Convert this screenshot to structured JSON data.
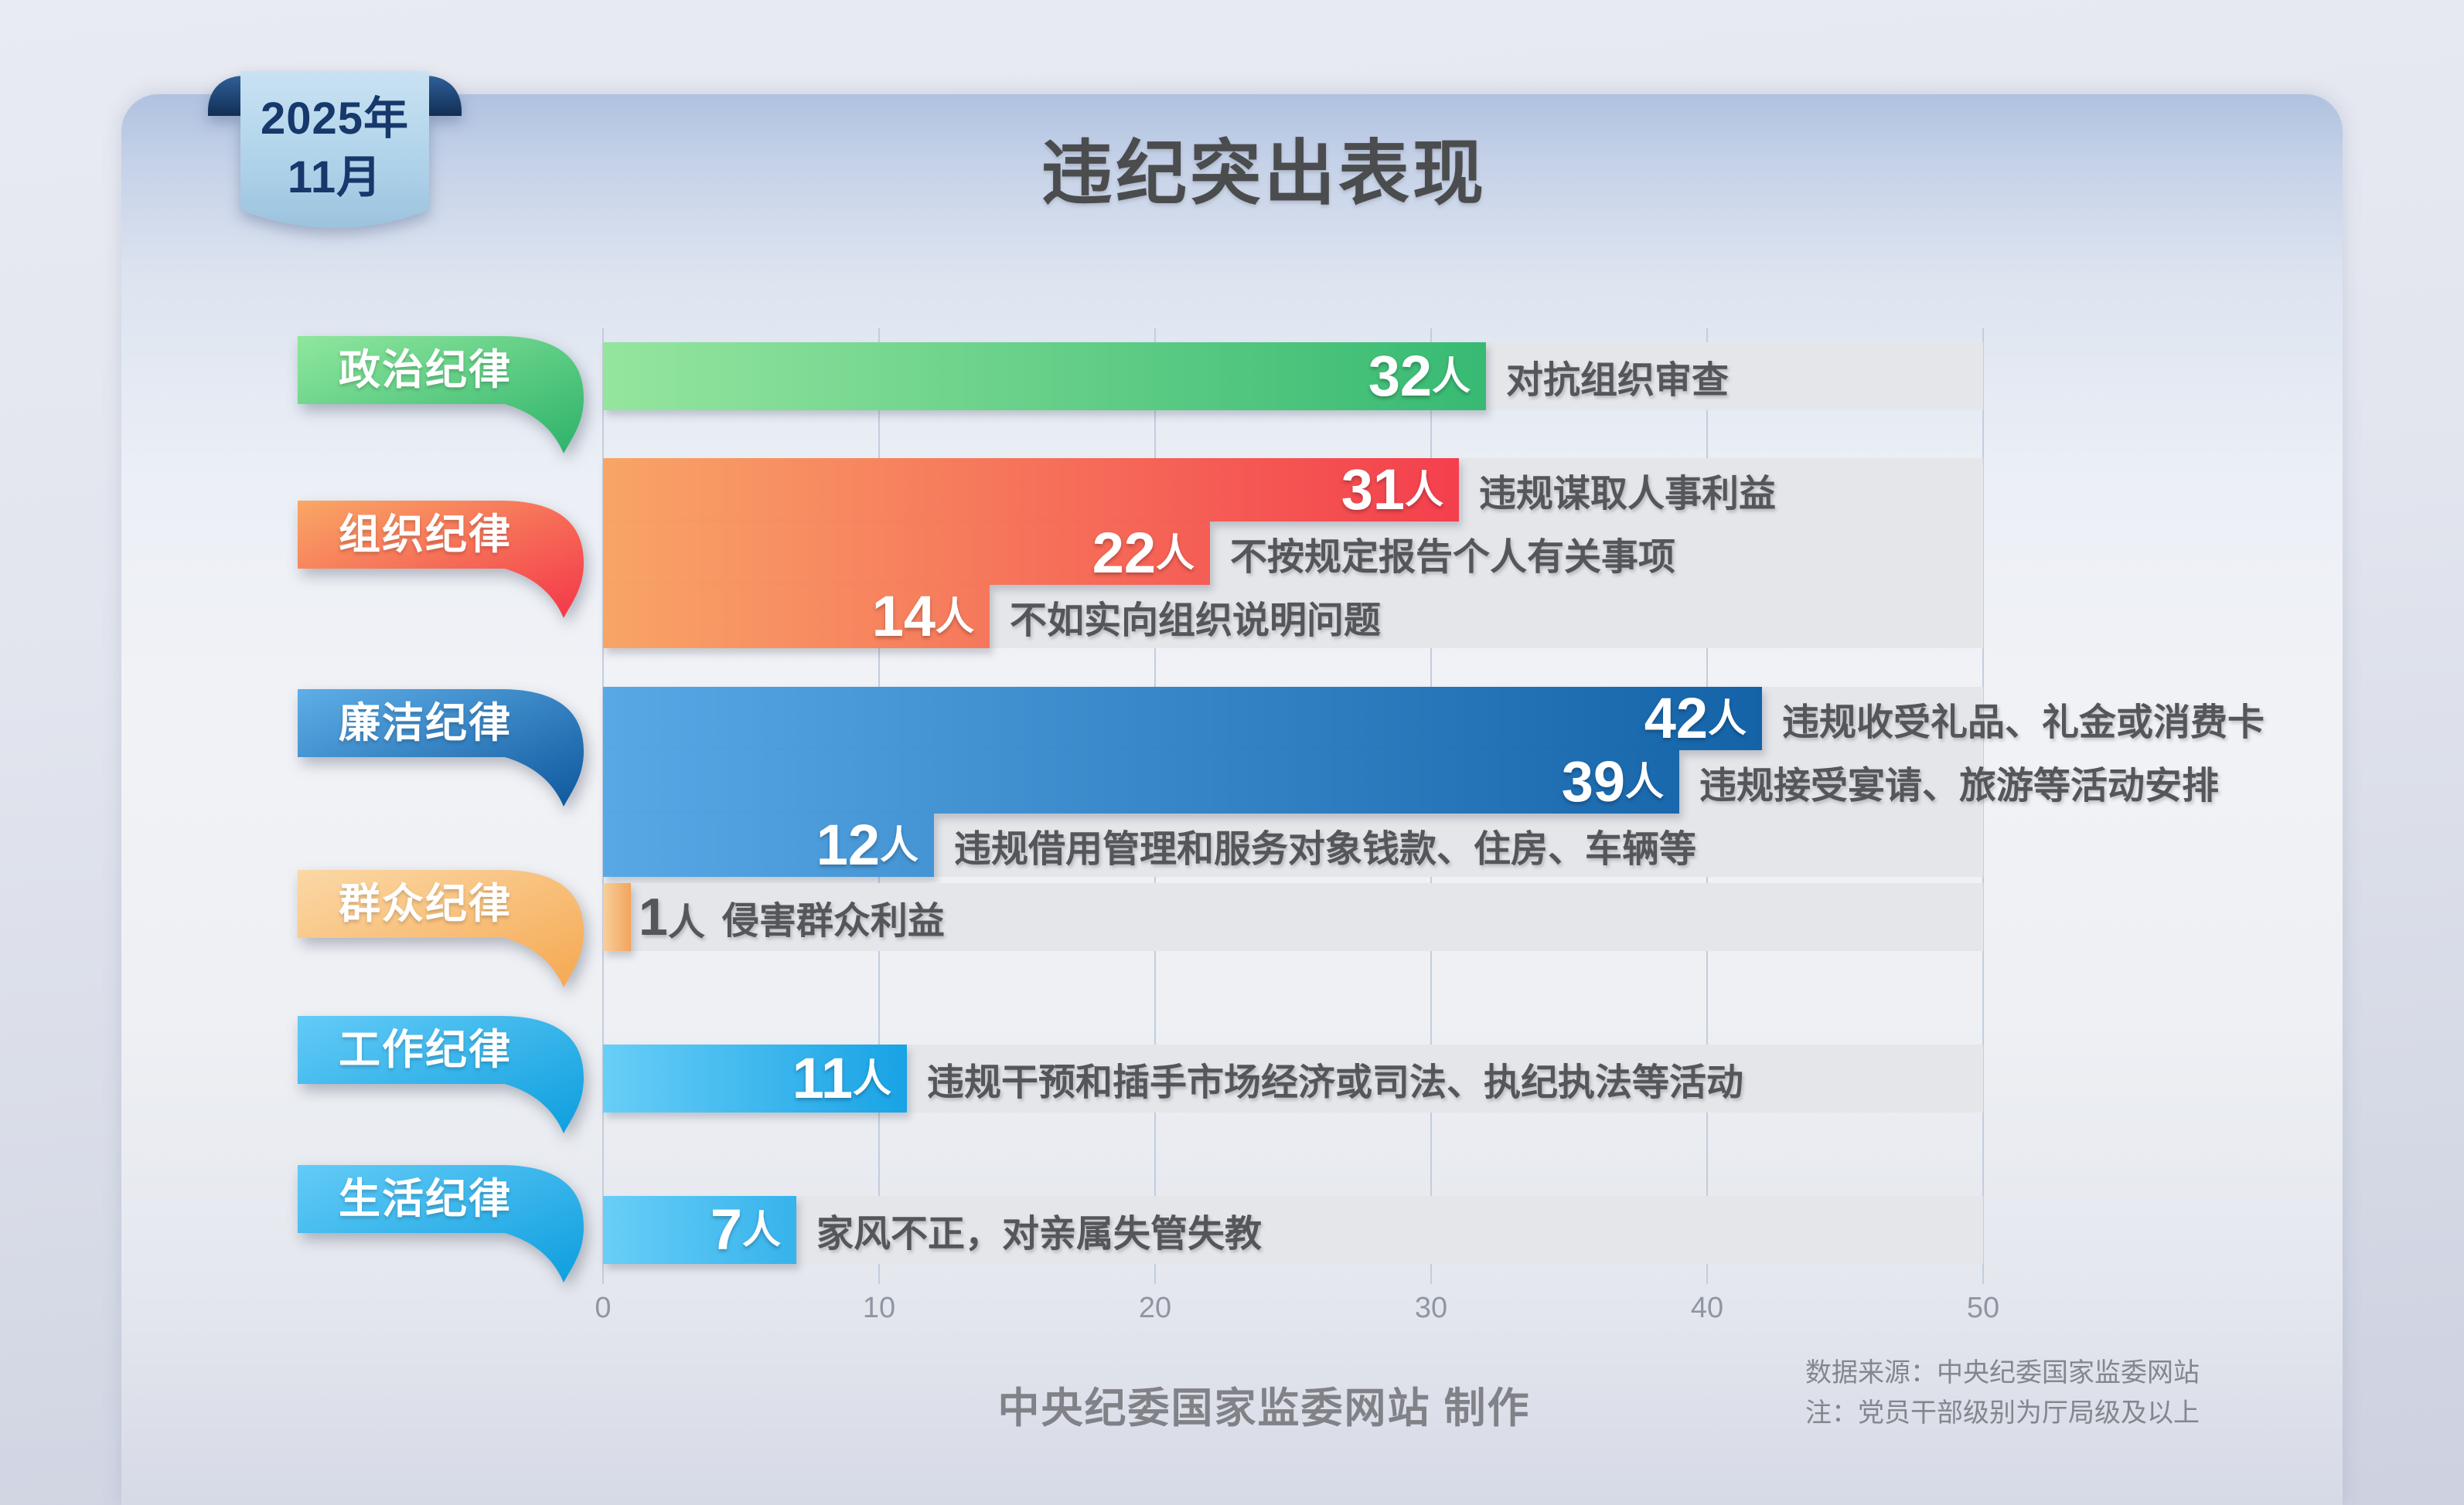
{
  "header": {
    "badge_line1": "2025年",
    "badge_line2": "11月",
    "title": "违纪突出表现"
  },
  "chart_data": {
    "type": "bar",
    "orientation": "horizontal",
    "title": "违纪突出表现",
    "period": "2025年11月",
    "unit": "人",
    "xlabel": "",
    "ylabel": "",
    "xlim": [
      0,
      50
    ],
    "x_ticks": [
      "0",
      "10",
      "20",
      "30",
      "40",
      "50"
    ],
    "grid": true,
    "groups": [
      {
        "category": "政治纪律",
        "scheme": "green",
        "items": [
          {
            "value": 32,
            "label": "对抗组织审查"
          }
        ]
      },
      {
        "category": "组织纪律",
        "scheme": "red",
        "items": [
          {
            "value": 31,
            "label": "违规谋取人事利益"
          },
          {
            "value": 22,
            "label": "不按规定报告个人有关事项"
          },
          {
            "value": 14,
            "label": "不如实向组织说明问题"
          }
        ]
      },
      {
        "category": "廉洁纪律",
        "scheme": "deepblue",
        "items": [
          {
            "value": 42,
            "label": "违规收受礼品、礼金或消费卡"
          },
          {
            "value": 39,
            "label": "违规接受宴请、旅游等活动安排"
          },
          {
            "value": 12,
            "label": "违规借用管理和服务对象钱款、住房、车辆等"
          }
        ]
      },
      {
        "category": "群众纪律",
        "scheme": "orange",
        "items": [
          {
            "value": 1,
            "label": "侵害群众利益"
          }
        ]
      },
      {
        "category": "工作纪律",
        "scheme": "cyan",
        "items": [
          {
            "value": 11,
            "label": "违规干预和插手市场经济或司法、执纪执法等活动"
          }
        ]
      },
      {
        "category": "生活纪律",
        "scheme": "cyan",
        "items": [
          {
            "value": 7,
            "label": "家风不正，对亲属失管失教"
          }
        ]
      }
    ]
  },
  "colors": {
    "schemes": {
      "green": {
        "tag": [
          "#8fe79d",
          "#2db26a"
        ],
        "bar": [
          "#95e59e",
          "#37ba73"
        ]
      },
      "red": {
        "tag": [
          "#f9a765",
          "#f4364a"
        ],
        "bar": [
          "#f8a567",
          "#f43f4d"
        ]
      },
      "deepblue": {
        "tag": [
          "#5eaee8",
          "#0e579c"
        ],
        "bar": [
          "#58a8e6",
          "#1463a8"
        ]
      },
      "orange": {
        "tag": [
          "#fbd8a6",
          "#f5a850"
        ],
        "bar": [
          "#f8cf9b",
          "#f3a45c"
        ]
      },
      "cyan": {
        "tag": [
          "#63cbf7",
          "#0d9ede"
        ],
        "bar": [
          "#68cef7",
          "#18a3e5"
        ]
      }
    },
    "badge_text": "#16386b",
    "title_text": "#4b4c4e",
    "description_text": "#55565a",
    "track": "#e4e6ea"
  },
  "footer": {
    "credit": "中央纪委国家监委网站 制作",
    "note_line1": "数据来源：中央纪委国家监委网站",
    "note_line2": "注：党员干部级别为厅局级及以上"
  }
}
